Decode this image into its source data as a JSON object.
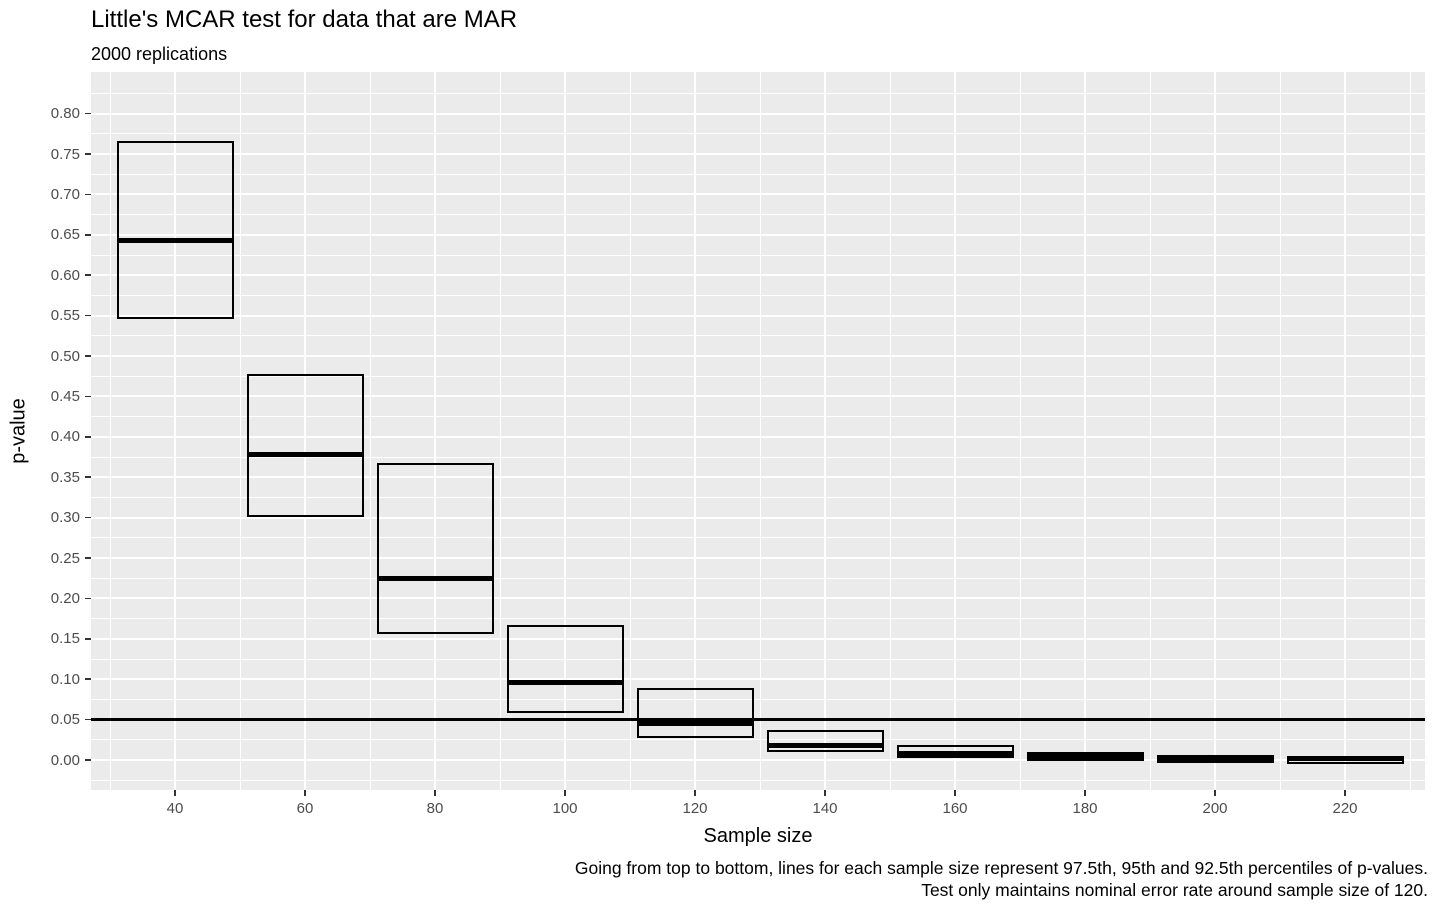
{
  "title": "Little's MCAR test for data that are MAR",
  "subtitle": "2000 replications",
  "caption": {
    "line1": "Going from top to bottom, lines for each sample size represent 97.5th, 95th and 92.5th percentiles of p-values.",
    "line2": "Test only maintains nominal error rate around sample size of 120."
  },
  "colors": {
    "panel_bg": "#EBEBEB",
    "grid": "#FFFFFF",
    "axis_text": "#4D4D4D",
    "tick_mark": "#333333",
    "box_stroke": "#000000",
    "ref_line": "#000000",
    "text": "#000000"
  },
  "chart_data": {
    "type": "crossbar",
    "title": "Little's MCAR test for data that are MAR",
    "subtitle": "2000 replications",
    "xlabel": "Sample size",
    "ylabel": "p-value",
    "x_ticks": [
      40,
      60,
      80,
      100,
      120,
      140,
      160,
      180,
      200,
      220
    ],
    "y_ticks": [
      0.0,
      0.05,
      0.1,
      0.15,
      0.2,
      0.25,
      0.3,
      0.35,
      0.4,
      0.45,
      0.5,
      0.55,
      0.6,
      0.65,
      0.7,
      0.75,
      0.8
    ],
    "xlim": [
      27,
      232
    ],
    "ylim": [
      -0.037,
      0.851
    ],
    "grid": "major-and-minor",
    "legend_position": "none",
    "reference_line_y": 0.05,
    "box_half_width": 9,
    "percentile_meaning_top_to_bottom": [
      "97.5th",
      "95th",
      "92.5th"
    ],
    "boxes": [
      {
        "n": 40,
        "p925": 0.547,
        "p95": 0.643,
        "p975": 0.764
      },
      {
        "n": 60,
        "p925": 0.302,
        "p95": 0.378,
        "p975": 0.476
      },
      {
        "n": 80,
        "p925": 0.157,
        "p95": 0.225,
        "p975": 0.366
      },
      {
        "n": 100,
        "p925": 0.06,
        "p95": 0.096,
        "p975": 0.165
      },
      {
        "n": 120,
        "p925": 0.029,
        "p95": 0.045,
        "p975": 0.087
      },
      {
        "n": 140,
        "p925": 0.011,
        "p95": 0.018,
        "p975": 0.036
      },
      {
        "n": 160,
        "p925": 0.004,
        "p95": 0.008,
        "p975": 0.017
      },
      {
        "n": 180,
        "p925": 0.001,
        "p95": 0.004,
        "p975": 0.008
      },
      {
        "n": 200,
        "p925": 0.0005,
        "p95": 0.002,
        "p975": 0.005
      },
      {
        "n": 220,
        "p925": 0.0003,
        "p95": 0.0015,
        "p975": 0.004
      }
    ]
  }
}
